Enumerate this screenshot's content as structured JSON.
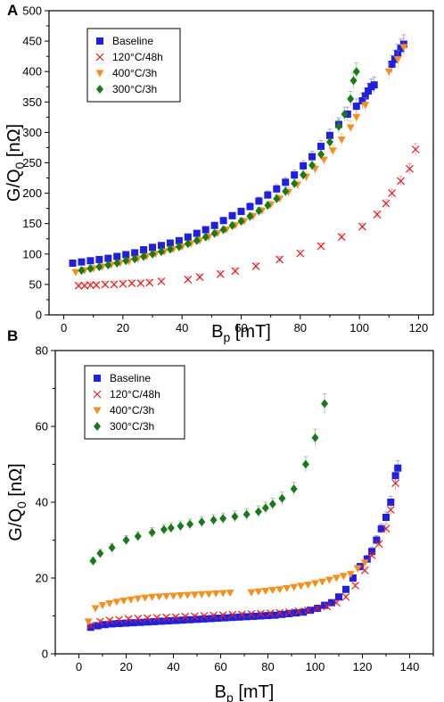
{
  "chart_data": [
    {
      "type": "scatter",
      "panel_label": "A",
      "xlabel": "B",
      "xlabel_sub": "p",
      "xlabel_unit": " [mT]",
      "ylabel": "G/Q",
      "ylabel_sub": "0",
      "ylabel_unit": " [nΩ]",
      "xlim": [
        -5,
        125
      ],
      "ylim": [
        0,
        500
      ],
      "xticks": [
        0,
        20,
        40,
        60,
        80,
        100,
        120
      ],
      "yticks": [
        0,
        50,
        100,
        150,
        200,
        250,
        300,
        350,
        400,
        450,
        500
      ],
      "legend_position": "top-left",
      "series": [
        {
          "name": "Baseline",
          "marker": "square",
          "color": "#1f1fe0",
          "x": [
            3,
            6,
            9,
            12,
            15,
            18,
            21,
            24,
            27,
            30,
            33,
            36,
            39,
            42,
            45,
            48,
            51,
            54,
            57,
            60,
            63,
            66,
            69,
            72,
            75,
            78,
            81,
            84,
            87,
            90,
            93,
            96,
            99,
            101,
            102,
            103,
            104,
            105,
            111,
            112,
            113,
            114,
            115
          ],
          "y": [
            85,
            87,
            89,
            91,
            93,
            96,
            99,
            102,
            107,
            111,
            114,
            118,
            122,
            128,
            134,
            140,
            147,
            155,
            163,
            170,
            178,
            187,
            197,
            207,
            218,
            230,
            245,
            260,
            277,
            295,
            313,
            330,
            343,
            352,
            360,
            368,
            375,
            378,
            412,
            420,
            430,
            438,
            445
          ]
        },
        {
          "name": "120°C/48h",
          "marker": "x",
          "color": "#e02020",
          "x": [
            5,
            7,
            9,
            11,
            14,
            17,
            20,
            23,
            26,
            29,
            33,
            42,
            46,
            53,
            58,
            65,
            73,
            80,
            87,
            94,
            101,
            106,
            109,
            111,
            114,
            117,
            119
          ],
          "y": [
            48,
            48,
            49,
            49,
            50,
            50,
            51,
            52,
            52,
            53,
            55,
            58,
            62,
            67,
            72,
            80,
            91,
            101,
            113,
            128,
            145,
            165,
            183,
            200,
            220,
            240,
            272
          ]
        },
        {
          "name": "400°C/3h",
          "marker": "triangle-down",
          "color": "#f5901e",
          "x": [
            4,
            7,
            10,
            13,
            16,
            19,
            22,
            25,
            28,
            31,
            34,
            37,
            40,
            43,
            46,
            49,
            52,
            55,
            58,
            61,
            64,
            67,
            70,
            73,
            76,
            79,
            82,
            85,
            88,
            91,
            94,
            97,
            99,
            102,
            110,
            113,
            115
          ],
          "y": [
            70,
            73,
            76,
            79,
            82,
            85,
            88,
            92,
            96,
            100,
            104,
            108,
            112,
            117,
            122,
            128,
            134,
            140,
            147,
            154,
            162,
            171,
            181,
            191,
            202,
            214,
            227,
            240,
            255,
            270,
            288,
            308,
            325,
            345,
            400,
            420,
            440
          ]
        },
        {
          "name": "300°C/3h",
          "marker": "diamond",
          "color": "#1a7a1a",
          "x": [
            6,
            9,
            12,
            15,
            18,
            21,
            24,
            27,
            30,
            33,
            36,
            39,
            42,
            45,
            48,
            51,
            54,
            57,
            60,
            63,
            66,
            69,
            72,
            75,
            78,
            81,
            84,
            87,
            90,
            93,
            95,
            97,
            98,
            99
          ],
          "y": [
            73,
            76,
            79,
            82,
            85,
            89,
            92,
            96,
            100,
            104,
            108,
            112,
            117,
            122,
            128,
            134,
            140,
            147,
            154,
            162,
            171,
            180,
            191,
            203,
            216,
            230,
            246,
            264,
            284,
            310,
            330,
            355,
            385,
            400
          ]
        }
      ]
    },
    {
      "type": "scatter",
      "panel_label": "B",
      "xlabel": "B",
      "xlabel_sub": "p",
      "xlabel_unit": " [mT]",
      "ylabel": "G/Q",
      "ylabel_sub": "0",
      "ylabel_unit": " [nΩ]",
      "xlim": [
        -10,
        150
      ],
      "ylim": [
        0,
        80
      ],
      "xticks": [
        0,
        20,
        40,
        60,
        80,
        100,
        120,
        140
      ],
      "yticks": [
        0,
        20,
        40,
        60,
        80
      ],
      "legend_position": "top-left",
      "series": [
        {
          "name": "Baseline",
          "marker": "square",
          "color": "#1f1fe0",
          "x": [
            5,
            8,
            11,
            14,
            17,
            20,
            23,
            26,
            29,
            32,
            35,
            38,
            41,
            44,
            47,
            50,
            53,
            56,
            59,
            62,
            65,
            68,
            71,
            74,
            77,
            80,
            83,
            86,
            89,
            92,
            95,
            98,
            101,
            104,
            107,
            110,
            113,
            116,
            119,
            122,
            124,
            126,
            128,
            130,
            132,
            134,
            135
          ],
          "y": [
            7,
            7.4,
            7.7,
            7.9,
            8.0,
            8.1,
            8.2,
            8.3,
            8.4,
            8.5,
            8.6,
            8.7,
            8.8,
            8.9,
            9.0,
            9.1,
            9.2,
            9.3,
            9.4,
            9.5,
            9.6,
            9.7,
            9.8,
            9.9,
            10.0,
            10.1,
            10.2,
            10.4,
            10.6,
            10.8,
            11.0,
            11.5,
            12.0,
            12.8,
            13.5,
            15,
            17,
            20,
            23,
            25,
            27,
            30,
            33,
            36,
            40,
            47,
            49
          ]
        },
        {
          "name": "120°C/48h",
          "marker": "x",
          "color": "#e02020",
          "x": [
            5,
            9,
            13,
            17,
            21,
            25,
            29,
            33,
            37,
            41,
            45,
            49,
            53,
            57,
            61,
            65,
            69,
            73,
            77,
            81,
            85,
            89,
            93,
            97,
            101,
            105,
            109,
            113,
            117,
            121,
            124,
            127,
            130,
            132,
            134
          ],
          "y": [
            7.5,
            8.5,
            8.8,
            9.0,
            9.2,
            9.3,
            9.4,
            9.5,
            9.6,
            9.7,
            9.8,
            9.9,
            10.0,
            10.1,
            10.2,
            10.3,
            10.4,
            10.5,
            10.6,
            10.7,
            10.8,
            11.0,
            11.2,
            11.5,
            12.0,
            12.5,
            13.5,
            15.0,
            18,
            22,
            26,
            29,
            33,
            38,
            45
          ]
        },
        {
          "name": "400°C/3h",
          "marker": "triangle-down",
          "color": "#f5901e",
          "x": [
            4,
            7,
            10,
            13,
            16,
            19,
            22,
            25,
            28,
            31,
            34,
            37,
            40,
            43,
            46,
            49,
            52,
            55,
            58,
            61,
            64,
            73,
            76,
            79,
            82,
            85,
            88,
            91,
            94,
            97,
            100,
            103,
            106,
            109,
            112,
            115,
            118,
            121
          ],
          "y": [
            8.5,
            12,
            12.8,
            13.3,
            13.7,
            14.0,
            14.3,
            14.6,
            14.8,
            15.0,
            15.1,
            15.2,
            15.3,
            15.4,
            15.5,
            15.6,
            15.7,
            15.8,
            15.9,
            16.0,
            16.1,
            16.2,
            16.4,
            16.6,
            16.8,
            17.0,
            17.3,
            17.6,
            17.9,
            18.2,
            18.6,
            19.0,
            19.5,
            20.0,
            20.5,
            21.0,
            22.5,
            24.0
          ]
        },
        {
          "name": "300°C/3h",
          "marker": "diamond",
          "color": "#1a7a1a",
          "x": [
            6,
            9,
            14,
            20,
            25,
            31,
            36,
            39,
            43,
            47,
            52,
            57,
            61,
            66,
            71,
            76,
            79,
            82,
            86,
            91,
            96,
            100,
            104
          ],
          "y": [
            24.5,
            26.5,
            28,
            30,
            31,
            32,
            32.8,
            33.2,
            33.7,
            34.2,
            34.8,
            35.3,
            35.7,
            36.2,
            36.8,
            37.5,
            38.5,
            39.5,
            41,
            43.5,
            50,
            57,
            66
          ]
        }
      ]
    }
  ]
}
